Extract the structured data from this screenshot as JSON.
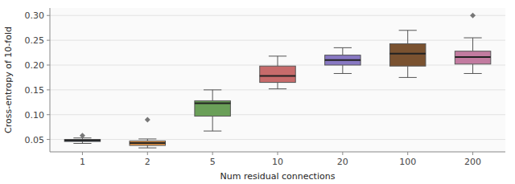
{
  "chart_data": {
    "type": "box",
    "categories": [
      "1",
      "2",
      "5",
      "10",
      "20",
      "100",
      "200"
    ],
    "boxes": [
      {
        "q1": 0.046,
        "median": 0.048,
        "q3": 0.05,
        "whislo": 0.042,
        "whishi": 0.053,
        "fliers": [
          0.058
        ]
      },
      {
        "q1": 0.038,
        "median": 0.043,
        "q3": 0.047,
        "whislo": 0.033,
        "whishi": 0.051,
        "fliers": [
          0.09
        ]
      },
      {
        "q1": 0.097,
        "median": 0.123,
        "q3": 0.128,
        "whislo": 0.067,
        "whishi": 0.15,
        "fliers": []
      },
      {
        "q1": 0.165,
        "median": 0.178,
        "q3": 0.198,
        "whislo": 0.152,
        "whishi": 0.218,
        "fliers": []
      },
      {
        "q1": 0.2,
        "median": 0.21,
        "q3": 0.22,
        "whislo": 0.183,
        "whishi": 0.235,
        "fliers": []
      },
      {
        "q1": 0.198,
        "median": 0.223,
        "q3": 0.243,
        "whislo": 0.175,
        "whishi": 0.27,
        "fliers": []
      },
      {
        "q1": 0.202,
        "median": 0.216,
        "q3": 0.228,
        "whislo": 0.183,
        "whishi": 0.255,
        "fliers": [
          0.3
        ]
      }
    ],
    "colors": [
      "#5778a4",
      "#e49444",
      "#6a9f58",
      "#c76b6b",
      "#8878c3",
      "#7a5230",
      "#c27ba0"
    ],
    "xlabel": "Num residual connections",
    "ylabel": "Cross-entropy of 10-fold",
    "ylim": [
      0.025,
      0.315
    ],
    "yticks": [
      0.05,
      {
        "value": 0.1,
        "label": "0.10"
      },
      0.15,
      {
        "value": 0.2,
        "label": "0.20"
      },
      0.25,
      {
        "value": 0.3,
        "label": "0.30"
      }
    ],
    "grid": true
  }
}
